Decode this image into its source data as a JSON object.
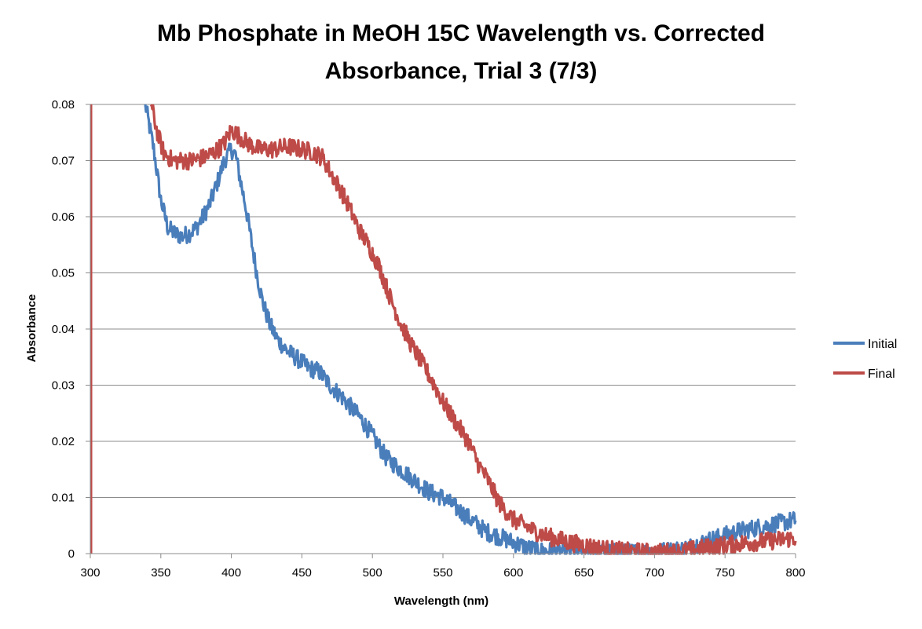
{
  "chart_data": {
    "type": "line",
    "title_lines": [
      "Mb Phosphate in MeOH 15C Wavelength vs. Corrected",
      "Absorbance, Trial 3 (7/3)"
    ],
    "xlabel": "Wavelength (nm)",
    "ylabel": "Absorbance",
    "xlim": [
      300,
      800
    ],
    "ylim": [
      0,
      0.08
    ],
    "x_ticks": [
      "300",
      "350",
      "400",
      "450",
      "500",
      "550",
      "600",
      "650",
      "700",
      "750",
      "800"
    ],
    "y_ticks": [
      "0",
      "0.01",
      "0.02",
      "0.03",
      "0.04",
      "0.05",
      "0.06",
      "0.07",
      "0.08"
    ],
    "grid": true,
    "legend_position": "right",
    "series": [
      {
        "name": "Initial",
        "color": "#4a7ebb",
        "noise": 0.0016,
        "points": [
          [
            339,
            0.08
          ],
          [
            345,
            0.072
          ],
          [
            350,
            0.063
          ],
          [
            355,
            0.058
          ],
          [
            360,
            0.057
          ],
          [
            365,
            0.0565
          ],
          [
            370,
            0.057
          ],
          [
            375,
            0.058
          ],
          [
            380,
            0.06
          ],
          [
            385,
            0.0625
          ],
          [
            390,
            0.066
          ],
          [
            395,
            0.07
          ],
          [
            400,
            0.072
          ],
          [
            403,
            0.071
          ],
          [
            406,
            0.067
          ],
          [
            410,
            0.062
          ],
          [
            414,
            0.056
          ],
          [
            418,
            0.05
          ],
          [
            422,
            0.045
          ],
          [
            427,
            0.041
          ],
          [
            433,
            0.038
          ],
          [
            440,
            0.036
          ],
          [
            448,
            0.0345
          ],
          [
            455,
            0.033
          ],
          [
            462,
            0.0325
          ],
          [
            470,
            0.03
          ],
          [
            478,
            0.028
          ],
          [
            485,
            0.026
          ],
          [
            492,
            0.024
          ],
          [
            500,
            0.021
          ],
          [
            505,
            0.019
          ],
          [
            510,
            0.017
          ],
          [
            520,
            0.015
          ],
          [
            530,
            0.013
          ],
          [
            540,
            0.011
          ],
          [
            550,
            0.01
          ],
          [
            560,
            0.008
          ],
          [
            570,
            0.006
          ],
          [
            580,
            0.004
          ],
          [
            590,
            0.003
          ],
          [
            600,
            0.002
          ],
          [
            610,
            0.001
          ],
          [
            620,
            0.0005
          ],
          [
            640,
            0.0003
          ],
          [
            660,
            0.0002
          ],
          [
            680,
            0.0002
          ],
          [
            700,
            0.0003
          ],
          [
            720,
            0.0008
          ],
          [
            740,
            0.0025
          ],
          [
            760,
            0.004
          ],
          [
            780,
            0.005
          ],
          [
            800,
            0.006
          ]
        ]
      },
      {
        "name": "Final",
        "color": "#be4b48",
        "noise": 0.0016,
        "points": [
          [
            343,
            0.08
          ],
          [
            348,
            0.0745
          ],
          [
            352,
            0.0715
          ],
          [
            358,
            0.07
          ],
          [
            365,
            0.07
          ],
          [
            372,
            0.07
          ],
          [
            380,
            0.0705
          ],
          [
            388,
            0.0715
          ],
          [
            395,
            0.073
          ],
          [
            400,
            0.0755
          ],
          [
            405,
            0.0745
          ],
          [
            412,
            0.073
          ],
          [
            420,
            0.072
          ],
          [
            430,
            0.072
          ],
          [
            440,
            0.0725
          ],
          [
            450,
            0.072
          ],
          [
            458,
            0.0715
          ],
          [
            465,
            0.0705
          ],
          [
            470,
            0.068
          ],
          [
            477,
            0.065
          ],
          [
            483,
            0.062
          ],
          [
            490,
            0.058
          ],
          [
            497,
            0.055
          ],
          [
            505,
            0.051
          ],
          [
            512,
            0.046
          ],
          [
            520,
            0.041
          ],
          [
            528,
            0.037
          ],
          [
            535,
            0.034
          ],
          [
            542,
            0.031
          ],
          [
            550,
            0.027
          ],
          [
            560,
            0.023
          ],
          [
            568,
            0.02
          ],
          [
            575,
            0.016
          ],
          [
            582,
            0.013
          ],
          [
            590,
            0.009
          ],
          [
            600,
            0.006
          ],
          [
            608,
            0.005
          ],
          [
            615,
            0.004
          ],
          [
            625,
            0.003
          ],
          [
            640,
            0.002
          ],
          [
            660,
            0.001
          ],
          [
            680,
            0.0004
          ],
          [
            700,
            0.0002
          ],
          [
            720,
            0.0004
          ],
          [
            740,
            0.0012
          ],
          [
            760,
            0.0018
          ],
          [
            780,
            0.0022
          ],
          [
            800,
            0.0028
          ]
        ]
      }
    ]
  }
}
